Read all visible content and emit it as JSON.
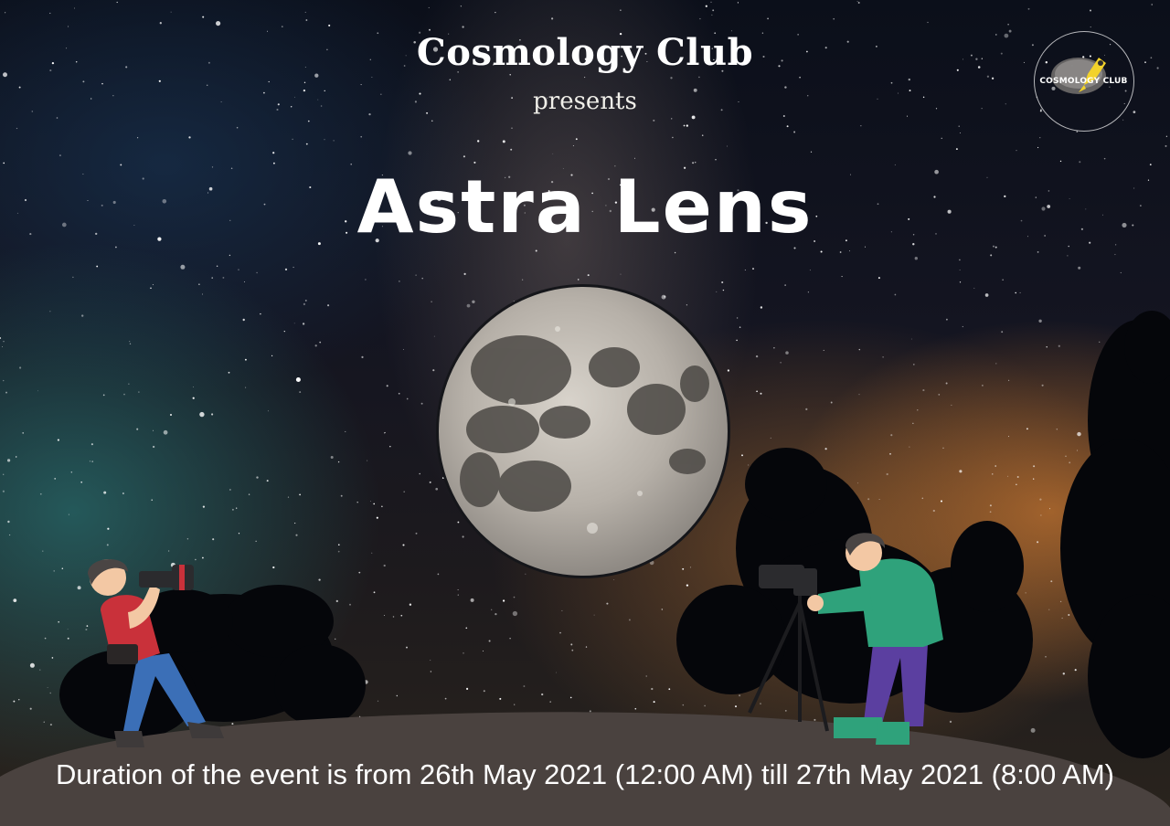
{
  "poster": {
    "organizer": "Cosmology Club",
    "presents": "presents",
    "event_title": "Astra Lens",
    "duration_text": "Duration of the event is from 26th May 2021 (12:00 AM) till 27th May 2021 (8:00 AM)"
  },
  "logo": {
    "text": "COSMOLOGY CLUB",
    "icon": "rocket-icon"
  },
  "illustrations": {
    "moon": "full-moon-icon",
    "photographer_left": "handheld-camera-photographer",
    "photographer_right": "tripod-camera-photographer"
  },
  "colors": {
    "ground": "#4a423f",
    "text": "#ffffff",
    "moon": "#b9b3ab",
    "tree": "#05060a",
    "sky_glow": "#c67630"
  }
}
